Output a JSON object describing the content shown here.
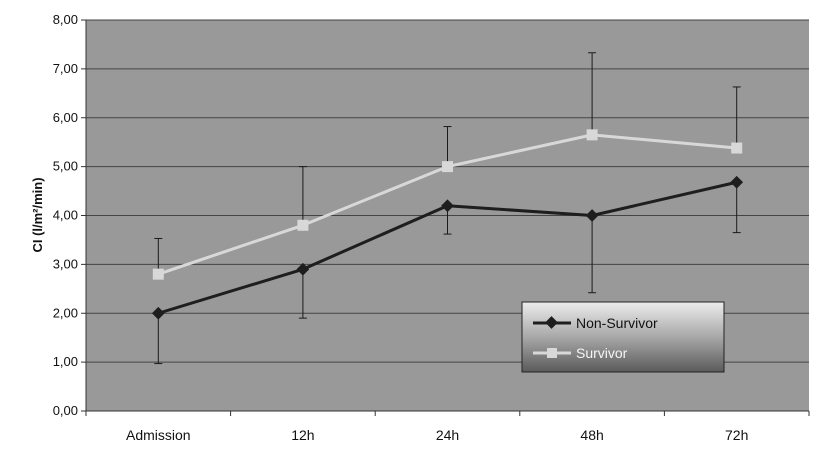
{
  "chart_data": {
    "type": "line",
    "title": "",
    "xlabel": "",
    "ylabel": "CI (l/m²/min)",
    "ylim": [
      0,
      8
    ],
    "yticks": [
      "0,00",
      "1,00",
      "2,00",
      "3,00",
      "4,00",
      "5,00",
      "6,00",
      "7,00",
      "8,00"
    ],
    "categories": [
      "Admission",
      "12h",
      "24h",
      "48h",
      "72h"
    ],
    "grid": true,
    "legend_position": "bottom-right",
    "series": [
      {
        "name": "Non-Survivor",
        "color": "#1e1e1e",
        "marker": "diamond",
        "values": [
          2.0,
          2.9,
          4.2,
          4.0,
          4.68
        ],
        "error_low": [
          0.97,
          1.9,
          3.62,
          2.42,
          3.65
        ],
        "error_high": null
      },
      {
        "name": "Survivor",
        "color": "#d8d8d8",
        "marker": "square",
        "values": [
          2.8,
          3.8,
          5.0,
          5.65,
          5.38
        ],
        "error_low": null,
        "error_high": [
          3.53,
          5.0,
          5.82,
          7.33,
          6.63
        ]
      }
    ]
  }
}
